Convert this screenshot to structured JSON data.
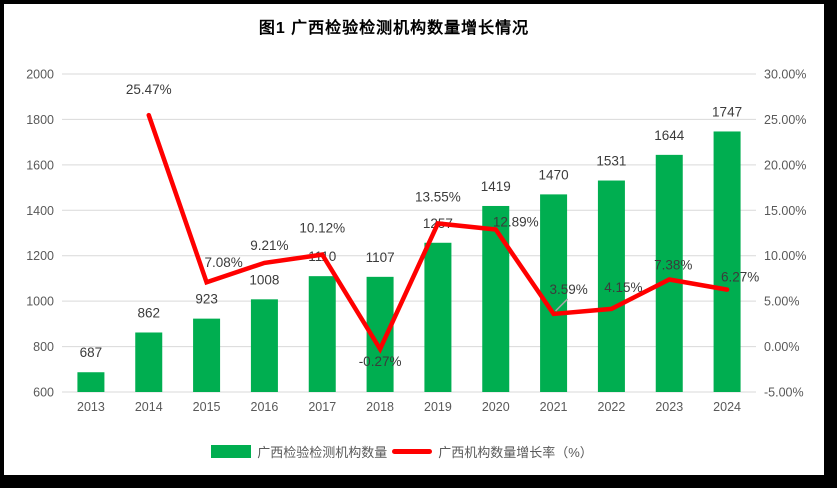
{
  "chart_data": {
    "type": "combo_bar_line",
    "title": "图1 广西检验检测机构数量增长情况",
    "categories": [
      "2013",
      "2014",
      "2015",
      "2016",
      "2017",
      "2018",
      "2019",
      "2020",
      "2021",
      "2022",
      "2023",
      "2024"
    ],
    "series": [
      {
        "name": "广西检验检测机构数量",
        "type": "bar",
        "axis": "left",
        "color": "#00AE50",
        "values": [
          687,
          862,
          923,
          1008,
          1110,
          1107,
          1257,
          1419,
          1470,
          1531,
          1644,
          1747
        ],
        "labels": [
          "687",
          "862",
          "923",
          "1008",
          "1110",
          "1107",
          "1257",
          "1419",
          "1470",
          "1531",
          "1644",
          "1747"
        ]
      },
      {
        "name": "广西机构数量增长率（%）",
        "type": "line",
        "axis": "right",
        "color": "#FF0000",
        "values": [
          null,
          25.47,
          7.08,
          9.21,
          10.12,
          -0.27,
          13.55,
          12.89,
          3.59,
          4.15,
          7.38,
          6.27
        ],
        "labels": [
          null,
          "25.47%",
          "7.08%",
          "9.21%",
          "10.12%",
          "-0.27%",
          "13.55%",
          "12.89%",
          "3.59%",
          "4.15%",
          "7.38%",
          "6.27%"
        ]
      }
    ],
    "axis_left": {
      "min": 600,
      "max": 2000,
      "tick_labels": [
        "2000",
        "1800",
        "1600",
        "1400",
        "1200",
        "1000",
        "800",
        "600"
      ]
    },
    "axis_right": {
      "min": -5,
      "max": 30,
      "tick_labels": [
        "30.00%",
        "25.00%",
        "20.00%",
        "15.00%",
        "10.00%",
        "5.00%",
        "0.00%",
        "-5.00%"
      ]
    },
    "legend": {
      "position": "bottom",
      "entries": [
        {
          "swatch": "bar",
          "color": "#00AE50",
          "label": "广西检验检测机构数量"
        },
        {
          "swatch": "line",
          "color": "#FF0000",
          "label": "广西机构数量增长率（%）"
        }
      ]
    },
    "grid": true,
    "grid_color": "#D9D9D9",
    "axis_text_color": "#595959",
    "data_label_color": "#3B3B3B",
    "leader_line_color": "#A6A6A6"
  }
}
